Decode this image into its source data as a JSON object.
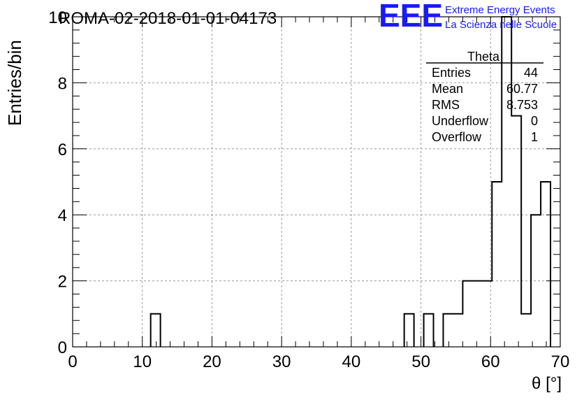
{
  "header": {
    "run_id": "ROMA-02-2018-01-01-04173",
    "logo_text": "EEE",
    "logo_line1": "Extreme Energy Events",
    "logo_line2": "La Scienza nelle Scuole",
    "logo_color": "#1a1aff"
  },
  "stats_box": {
    "title": "Theta",
    "rows": [
      {
        "label": "Entries",
        "value": "44"
      },
      {
        "label": "Mean",
        "value": "60.77"
      },
      {
        "label": "RMS",
        "value": "8.753"
      },
      {
        "label": "Underflow",
        "value": "0"
      },
      {
        "label": "Overflow",
        "value": "1"
      }
    ]
  },
  "chart_data": {
    "type": "histogram",
    "title": "ROMA-02-2018-01-01-04173",
    "xlabel": "θ [°]",
    "ylabel": "Entries/bin",
    "xlim": [
      0,
      70
    ],
    "ylim": [
      0,
      10
    ],
    "x_ticks": [
      "0",
      "10",
      "20",
      "30",
      "40",
      "50",
      "60",
      "70"
    ],
    "y_ticks": [
      "0",
      "2",
      "4",
      "6",
      "8",
      "10"
    ],
    "grid": true,
    "bin_width": 1.4,
    "bins": [
      {
        "x0": 11.2,
        "x1": 12.6,
        "count": 1
      },
      {
        "x0": 47.6,
        "x1": 49.0,
        "count": 1
      },
      {
        "x0": 50.4,
        "x1": 51.8,
        "count": 1
      },
      {
        "x0": 53.2,
        "x1": 54.6,
        "count": 1
      },
      {
        "x0": 54.6,
        "x1": 56.0,
        "count": 1
      },
      {
        "x0": 56.0,
        "x1": 57.4,
        "count": 2
      },
      {
        "x0": 57.4,
        "x1": 58.8,
        "count": 2
      },
      {
        "x0": 58.8,
        "x1": 60.2,
        "count": 2
      },
      {
        "x0": 60.2,
        "x1": 61.6,
        "count": 5
      },
      {
        "x0": 61.6,
        "x1": 63.0,
        "count": 10
      },
      {
        "x0": 63.0,
        "x1": 64.4,
        "count": 7
      },
      {
        "x0": 64.4,
        "x1": 65.8,
        "count": 1
      },
      {
        "x0": 65.8,
        "x1": 67.2,
        "count": 4
      },
      {
        "x0": 67.2,
        "x1": 68.6,
        "count": 5
      }
    ],
    "line_color": "#000000"
  }
}
